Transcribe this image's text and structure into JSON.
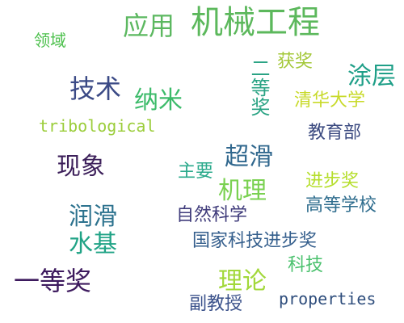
{
  "words": [
    {
      "id": "jixie",
      "text": "机械工程",
      "color": "#5cb85c"
    },
    {
      "id": "yingyong",
      "text": "应用",
      "color": "#5cb860"
    },
    {
      "id": "lingyu",
      "text": "领域",
      "color": "#4cc04c"
    },
    {
      "id": "jishu",
      "text": "技术",
      "color": "#3b4a86"
    },
    {
      "id": "nami",
      "text": "纳米",
      "color": "#3cbb6a"
    },
    {
      "id": "ertj",
      "text": "二等奖",
      "color": "#2aa384"
    },
    {
      "id": "huojiang",
      "text": "获奖",
      "color": "#a4c83a"
    },
    {
      "id": "tuceng",
      "text": "涂层",
      "color": "#1f9f88"
    },
    {
      "id": "qinghua",
      "text": "清华大学",
      "color": "#c8da2a"
    },
    {
      "id": "tribo",
      "text": "tribological",
      "color": "#9bcd3a"
    },
    {
      "id": "jiaoyubu",
      "text": "教育部",
      "color": "#3b4a80"
    },
    {
      "id": "chaohua",
      "text": "超滑",
      "color": "#31688e"
    },
    {
      "id": "xianxiang",
      "text": "现象",
      "color": "#3c1f5a"
    },
    {
      "id": "zhuyao",
      "text": "主要",
      "color": "#2aa98b"
    },
    {
      "id": "jinbu",
      "text": "进步奖",
      "color": "#b5de2b"
    },
    {
      "id": "jili",
      "text": "机理",
      "color": "#7ad151"
    },
    {
      "id": "runhua",
      "text": "润滑",
      "color": "#2c728e"
    },
    {
      "id": "ziran",
      "text": "自然科学",
      "color": "#3e3a7a"
    },
    {
      "id": "gaodeng",
      "text": "高等学校",
      "color": "#2f6d8e"
    },
    {
      "id": "shuiji",
      "text": "水基",
      "color": "#20a386"
    },
    {
      "id": "guojia",
      "text": "国家科技进步奖",
      "color": "#355f8d"
    },
    {
      "id": "yidj",
      "text": "一等奖",
      "color": "#3d1a5e"
    },
    {
      "id": "lilun",
      "text": "理论",
      "color": "#a2d83a"
    },
    {
      "id": "keji",
      "text": "科技",
      "color": "#4ac16d"
    },
    {
      "id": "fujiao",
      "text": "副教授",
      "color": "#3b528b"
    },
    {
      "id": "props",
      "text": "properties",
      "color": "#2e4d7c"
    }
  ]
}
